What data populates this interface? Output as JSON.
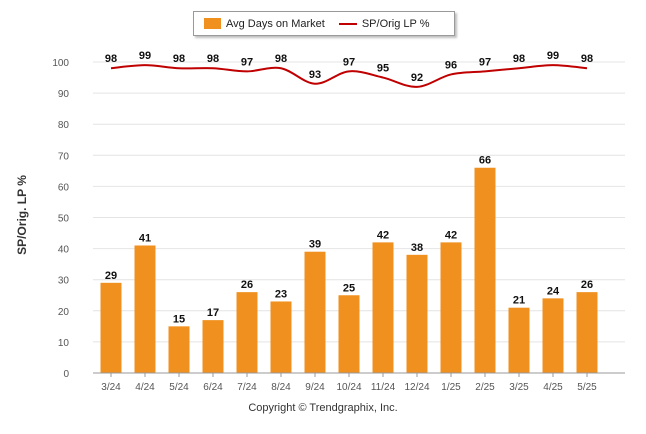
{
  "legend": {
    "bar_label": "Avg Days on Market",
    "line_label": "SP/Orig LP %"
  },
  "ylabel": "SP/Orig. LP %",
  "copyright": "Copyright © Trendgraphix, Inc.",
  "colors": {
    "bar": "#f0901e",
    "line": "#c00000",
    "grid": "#e4e4e4",
    "axis": "#999999"
  },
  "chart_data": {
    "type": "bar",
    "categories": [
      "3/24",
      "4/24",
      "5/24",
      "6/24",
      "7/24",
      "8/24",
      "9/24",
      "10/24",
      "11/24",
      "12/24",
      "1/25",
      "2/25",
      "3/25",
      "4/25",
      "5/25"
    ],
    "series": [
      {
        "name": "Avg Days on Market",
        "type": "bar",
        "values": [
          29,
          41,
          15,
          17,
          26,
          23,
          39,
          25,
          42,
          38,
          42,
          66,
          21,
          24,
          26
        ]
      },
      {
        "name": "SP/Orig LP %",
        "type": "line",
        "values": [
          98,
          99,
          98,
          98,
          97,
          98,
          93,
          97,
          95,
          92,
          96,
          97,
          98,
          99,
          98
        ]
      }
    ],
    "xlabel": "",
    "ylabel": "SP/Orig. LP %",
    "ylim": [
      0,
      100
    ],
    "yticks": [
      0,
      10,
      20,
      30,
      40,
      50,
      60,
      70,
      80,
      90,
      100
    ],
    "grid": true,
    "legend_position": "top-center"
  }
}
